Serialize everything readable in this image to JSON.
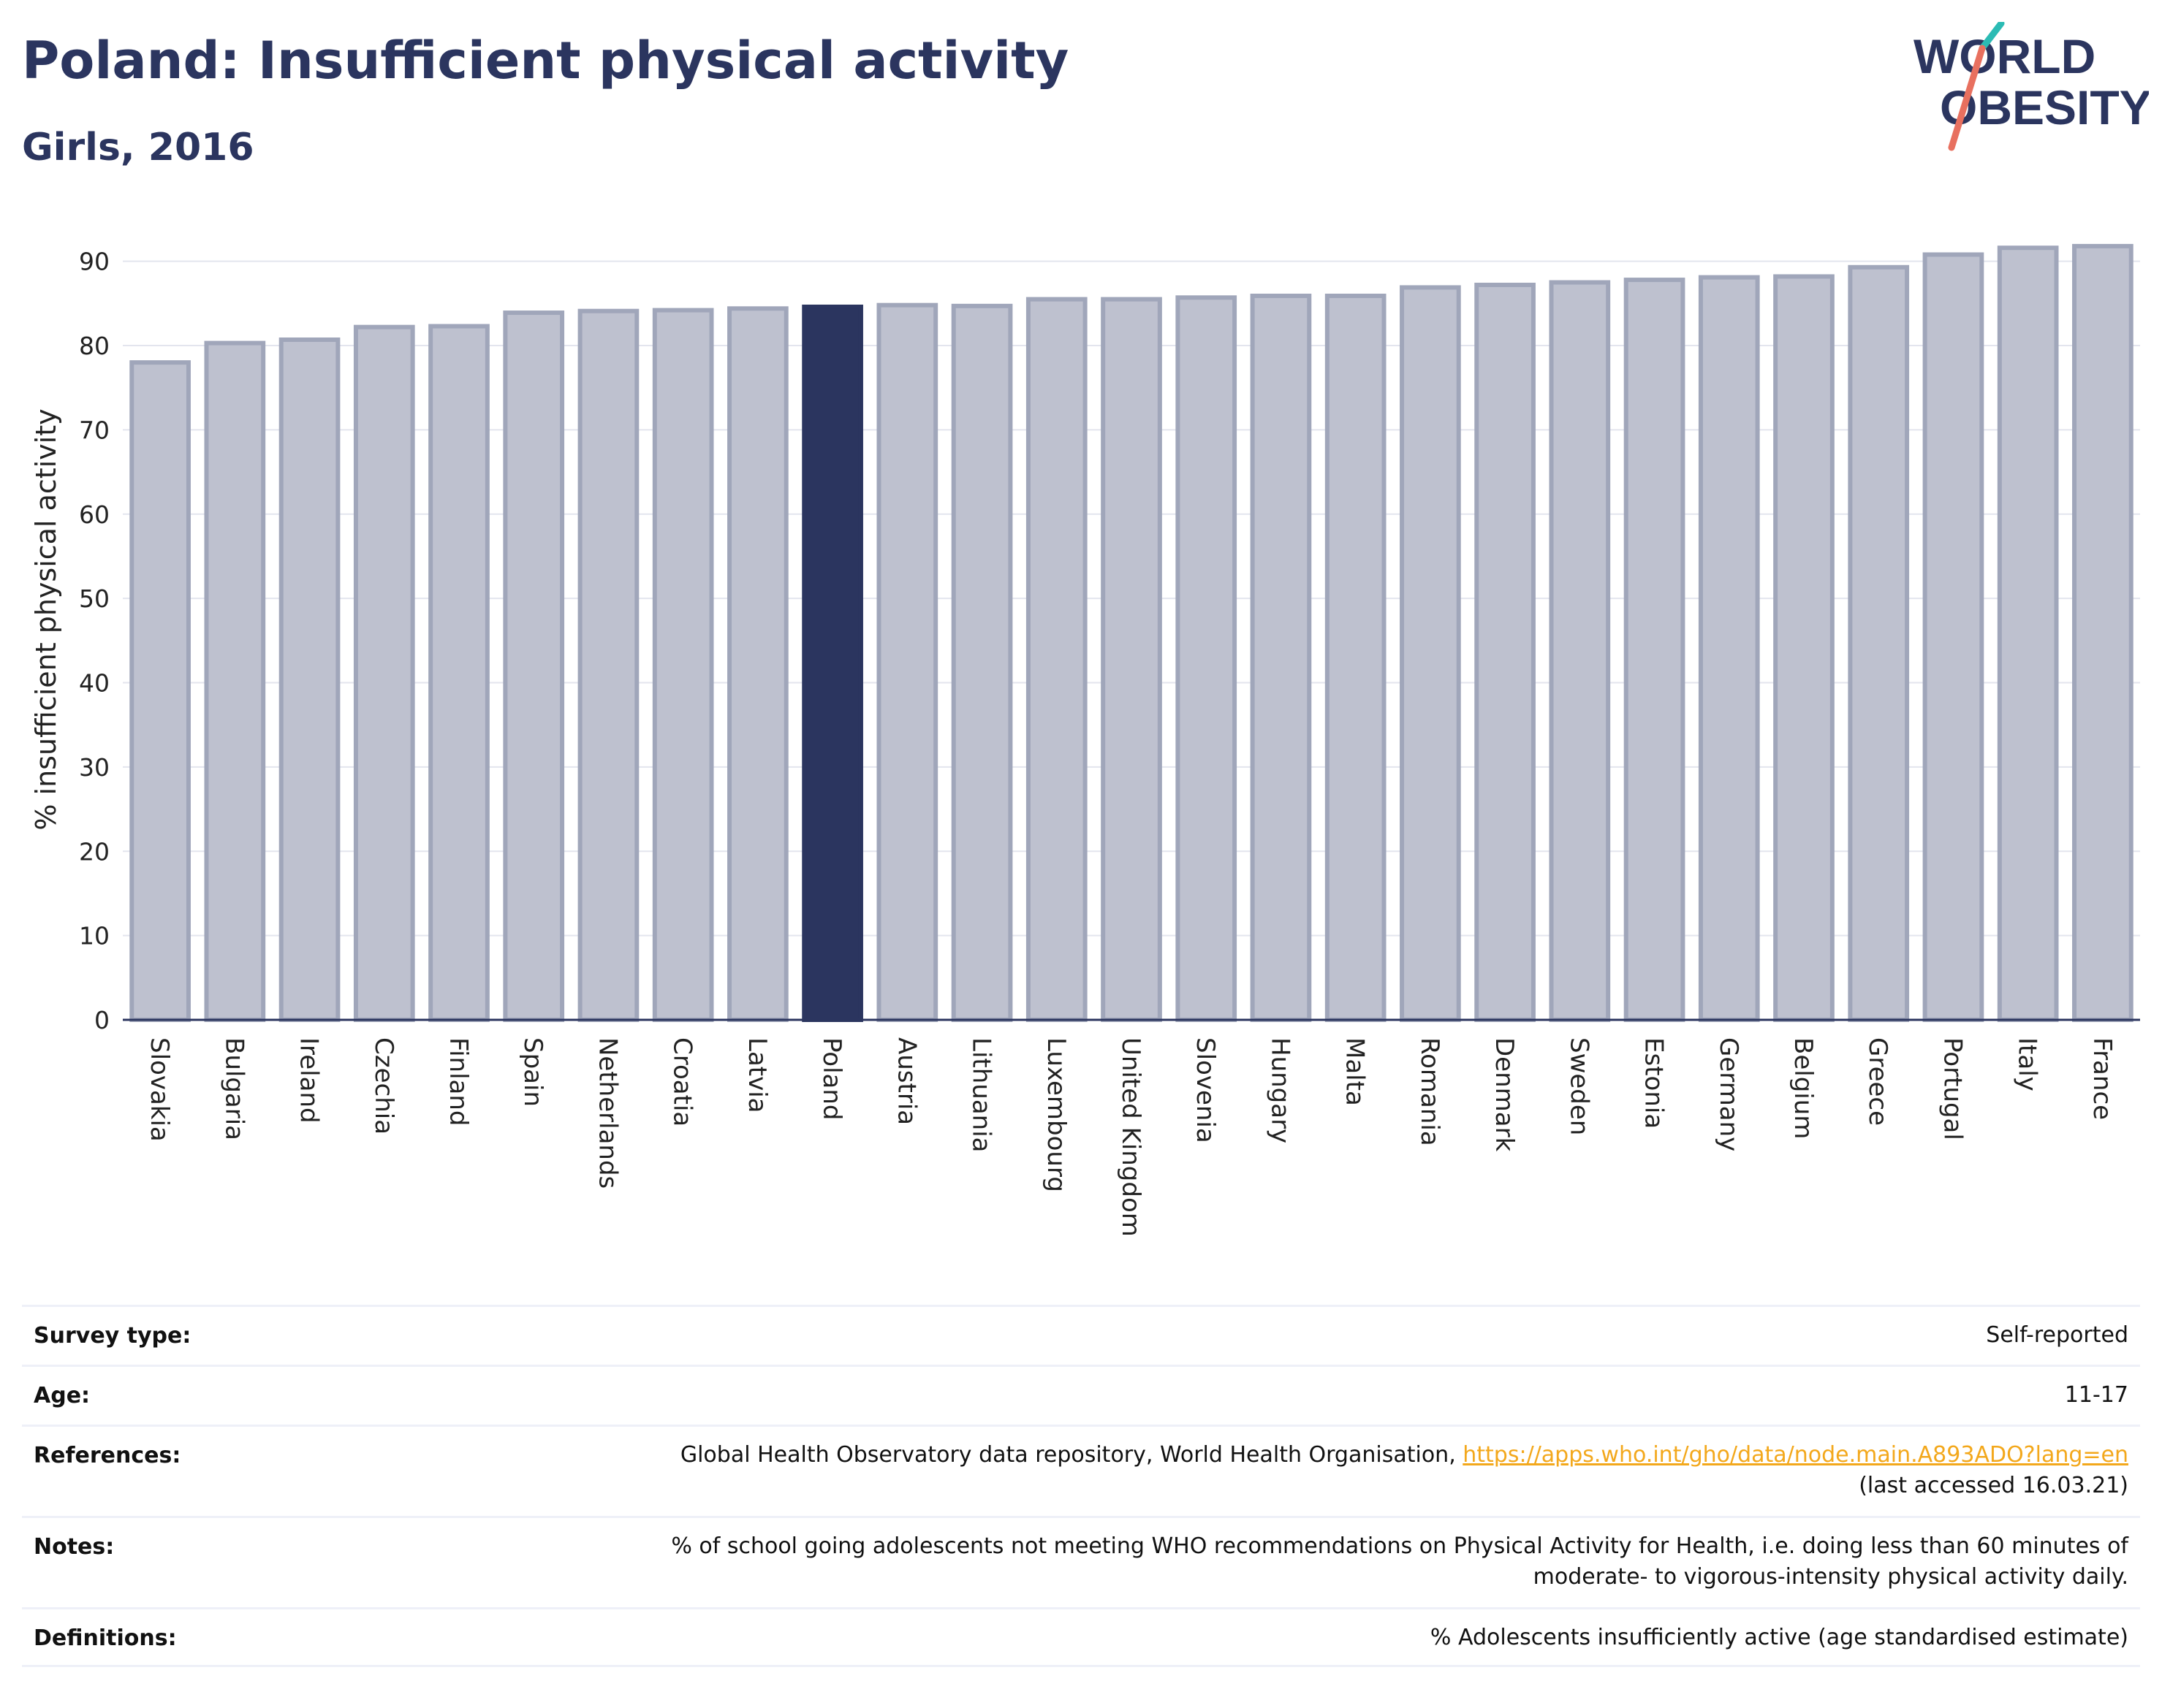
{
  "header": {
    "title": "Poland: Insufficient physical activity",
    "subtitle": "Girls, 2016"
  },
  "logo": {
    "line1": "WORLD",
    "line2": "OBESITY"
  },
  "colors": {
    "highlight": "#2b355f",
    "bar_fill": "#bec1cf",
    "bar_stroke": "#a0a6ba",
    "accent_teal": "#2bbbb4",
    "accent_red": "#e8705f",
    "link": "#f3a81c"
  },
  "chart_data": {
    "type": "bar",
    "categories": [
      "Slovakia",
      "Bulgaria",
      "Ireland",
      "Czechia",
      "Finland",
      "Spain",
      "Netherlands",
      "Croatia",
      "Latvia",
      "Poland",
      "Austria",
      "Lithuania",
      "Luxembourg",
      "United Kingdom",
      "Slovenia",
      "Hungary",
      "Malta",
      "Romania",
      "Denmark",
      "Sweden",
      "Estonia",
      "Germany",
      "Belgium",
      "Greece",
      "Portugal",
      "Italy",
      "France"
    ],
    "values": [
      78.0,
      80.3,
      80.7,
      82.2,
      82.3,
      83.9,
      84.1,
      84.2,
      84.4,
      84.6,
      84.8,
      84.7,
      85.5,
      85.5,
      85.7,
      85.9,
      85.9,
      86.9,
      87.2,
      87.5,
      87.8,
      88.1,
      88.2,
      89.3,
      90.8,
      91.6,
      91.8
    ],
    "highlight": "Poland",
    "title": "",
    "xlabel": "",
    "ylabel": "% insufficient physical activity",
    "ylim": [
      0,
      95
    ],
    "yticks": [
      0,
      10,
      20,
      30,
      40,
      50,
      60,
      70,
      80,
      90
    ],
    "grid": true,
    "legend": "none"
  },
  "info": {
    "rows": [
      {
        "label": "Survey type:",
        "lines": [
          "Self-reported"
        ]
      },
      {
        "label": "Age:",
        "lines": [
          "11-17"
        ]
      },
      {
        "label": "References:",
        "lines": [
          "Global Health Observatory data repository, World Health Organisation, ",
          "(last accessed 16.03.21)"
        ],
        "link": "https://apps.who.int/gho/data/node.main.A893ADO?lang=en"
      },
      {
        "label": "Notes:",
        "lines": [
          "% of school going adolescents not meeting WHO recommendations on Physical Activity for Health, i.e. doing less than 60 minutes of",
          "moderate- to vigorous-intensity physical activity daily."
        ]
      },
      {
        "label": "Definitions:",
        "lines": [
          "% Adolescents insufficiently active (age standardised estimate)"
        ]
      }
    ]
  }
}
